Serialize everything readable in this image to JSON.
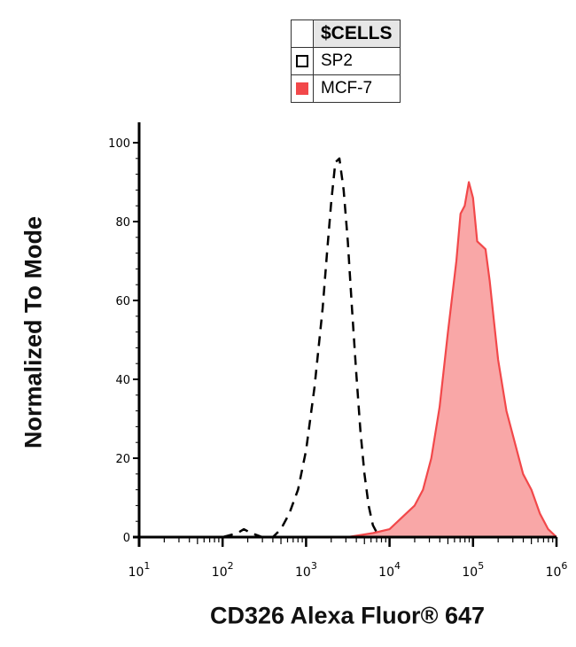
{
  "legend": {
    "header": "$CELLS",
    "items": [
      {
        "label": "SP2",
        "color": "#000000",
        "style": "dashed-outline"
      },
      {
        "label": "MCF-7",
        "color": "#f2484a",
        "style": "filled"
      }
    ]
  },
  "chart_data": {
    "type": "area",
    "title": "",
    "xlabel": "CD326 Alexa Fluor® 647",
    "ylabel": "Normalized To Mode",
    "x_scale": "log",
    "xlim": [
      10,
      1000000
    ],
    "ylim": [
      0,
      100
    ],
    "x_ticks": [
      {
        "value": 10,
        "base": "10",
        "exp": "1"
      },
      {
        "value": 100,
        "base": "10",
        "exp": "2"
      },
      {
        "value": 1000,
        "base": "10",
        "exp": "3"
      },
      {
        "value": 10000,
        "base": "10",
        "exp": "4"
      },
      {
        "value": 100000,
        "base": "10",
        "exp": "5"
      },
      {
        "value": 1000000,
        "base": "10",
        "exp": "6"
      }
    ],
    "y_ticks": [
      0,
      20,
      40,
      60,
      80,
      100
    ],
    "grid": false,
    "legend_position": "top-center",
    "series": [
      {
        "name": "SP2",
        "style": "dashed",
        "color": "#000000",
        "x": [
          10,
          100,
          150,
          180,
          220,
          300,
          400,
          500,
          630,
          800,
          1000,
          1260,
          1580,
          1780,
          2000,
          2240,
          2510,
          2820,
          3160,
          3550,
          3980,
          4470,
          5010,
          5620,
          6310,
          7080,
          7940,
          8910,
          10000,
          100000,
          1000000
        ],
        "y": [
          0,
          0,
          1,
          2,
          1,
          0,
          0,
          2,
          6,
          12,
          22,
          38,
          58,
          72,
          85,
          95,
          96,
          88,
          75,
          58,
          42,
          27,
          16,
          8,
          3,
          1,
          0,
          0,
          0,
          0,
          0
        ]
      },
      {
        "name": "MCF-7",
        "style": "filled",
        "color": "#f2484a",
        "fill": "#f9a7a7",
        "x": [
          10,
          1000,
          3160,
          6310,
          10000,
          12590,
          15850,
          19950,
          25120,
          31620,
          39810,
          50120,
          63100,
          70800,
          79430,
          89130,
          100000,
          112200,
          125900,
          141300,
          158500,
          177800,
          199500,
          251200,
          316200,
          398100,
          501200,
          631000,
          794300,
          1000000
        ],
        "y": [
          0,
          0,
          0,
          1,
          2,
          4,
          6,
          8,
          12,
          20,
          33,
          52,
          70,
          82,
          84,
          90,
          86,
          75,
          74,
          73,
          65,
          55,
          45,
          32,
          24,
          16,
          12,
          6,
          2,
          0
        ]
      }
    ]
  }
}
